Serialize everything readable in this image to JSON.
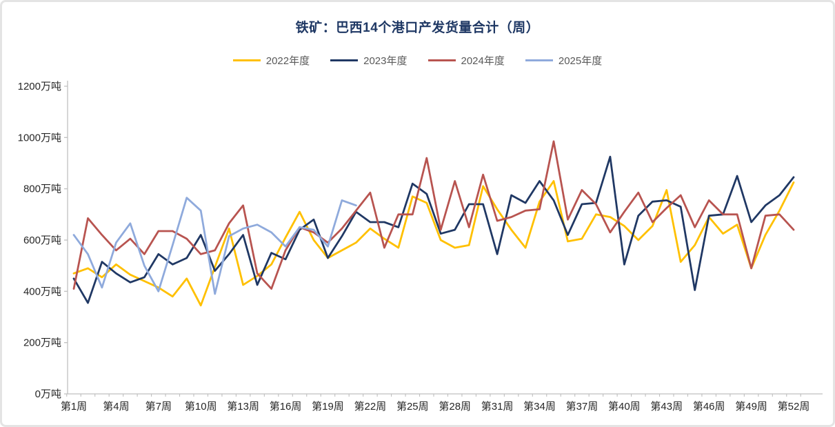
{
  "title": "铁矿：巴西14个港口产发货量合计（周）",
  "title_color": "#1f3864",
  "chart_data": {
    "type": "line",
    "x_categories_weeks": 52,
    "x_tick_labels": [
      "第1周",
      "第4周",
      "第7周",
      "第10周",
      "第13周",
      "第16周",
      "第19周",
      "第22周",
      "第25周",
      "第28周",
      "第31周",
      "第34周",
      "第37周",
      "第40周",
      "第43周",
      "第46周",
      "第49周",
      "第52周"
    ],
    "x_label_step": 3,
    "y_tick_labels": [
      "0万吨",
      "200万吨",
      "400万吨",
      "600万吨",
      "800万吨",
      "1000万吨",
      "1200万吨"
    ],
    "ylim": [
      0,
      1200
    ],
    "y_step": 200,
    "grid": "off",
    "legend_position": "top",
    "axis_line_color": "#bfbfbf",
    "series": [
      {
        "name": "2022年度",
        "color": "#FFC000",
        "values": [
          470,
          490,
          455,
          505,
          465,
          440,
          415,
          380,
          450,
          345,
          495,
          645,
          425,
          460,
          505,
          610,
          710,
          600,
          530,
          560,
          590,
          645,
          605,
          570,
          770,
          745,
          600,
          570,
          580,
          810,
          720,
          640,
          570,
          750,
          830,
          595,
          605,
          700,
          690,
          655,
          600,
          655,
          795,
          515,
          580,
          690,
          625,
          660,
          490,
          620,
          715,
          825
        ]
      },
      {
        "name": "2023年度",
        "color": "#203864",
        "values": [
          450,
          355,
          515,
          470,
          435,
          455,
          545,
          505,
          530,
          620,
          480,
          545,
          620,
          425,
          550,
          525,
          640,
          680,
          530,
          615,
          710,
          670,
          670,
          650,
          820,
          780,
          625,
          640,
          740,
          740,
          545,
          775,
          745,
          830,
          755,
          620,
          740,
          745,
          925,
          505,
          695,
          750,
          755,
          730,
          405,
          695,
          700,
          850,
          670,
          735,
          775,
          845
        ]
      },
      {
        "name": "2024年度",
        "color": "#B85450",
        "values": [
          410,
          685,
          620,
          560,
          605,
          545,
          635,
          635,
          605,
          545,
          560,
          665,
          735,
          470,
          410,
          560,
          650,
          630,
          590,
          645,
          715,
          785,
          570,
          700,
          700,
          920,
          640,
          830,
          650,
          855,
          675,
          690,
          715,
          720,
          985,
          680,
          795,
          740,
          630,
          710,
          785,
          670,
          725,
          775,
          650,
          755,
          700,
          700,
          490,
          695,
          700,
          640
        ]
      },
      {
        "name": "2025年度",
        "color": "#8FAADC",
        "values": [
          620,
          545,
          415,
          590,
          665,
          500,
          400,
          580,
          765,
          715,
          390,
          615,
          645,
          660,
          630,
          575,
          650,
          640,
          575,
          755,
          735
        ]
      }
    ]
  }
}
